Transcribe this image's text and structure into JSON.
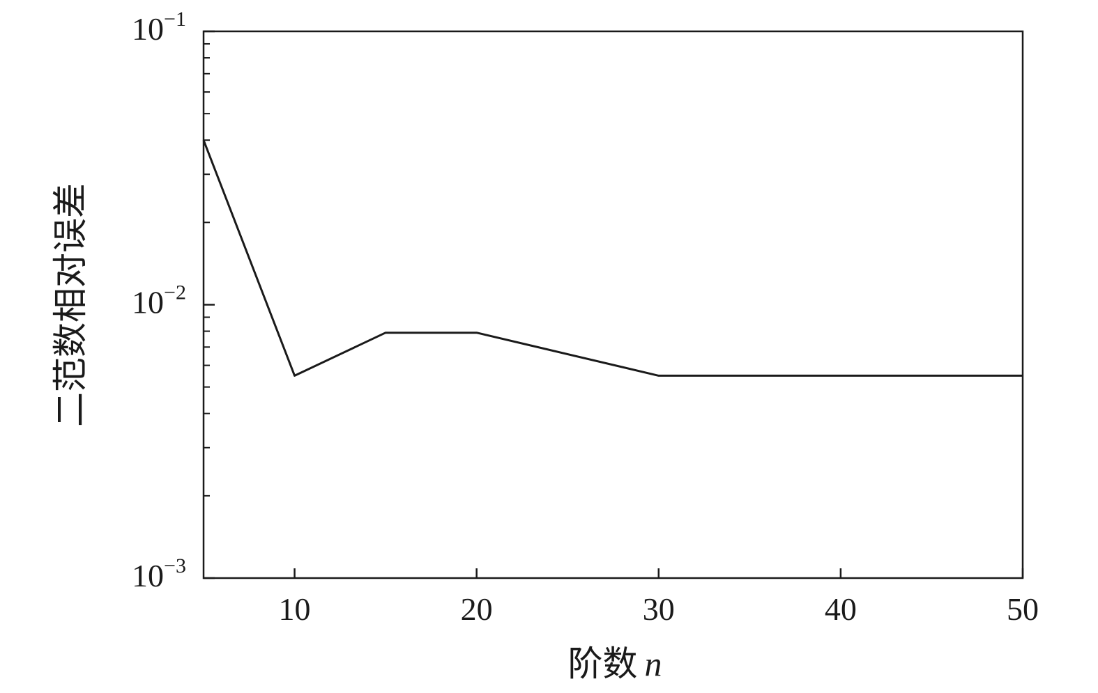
{
  "chart_data": {
    "type": "line",
    "xlabel": "阶数",
    "xlabel_var": "n",
    "ylabel": "二范数相对误差",
    "xlim": [
      5,
      50
    ],
    "ylim": [
      0.001,
      0.1
    ],
    "yscale": "log",
    "grid": false,
    "x_ticks": [
      10,
      20,
      30,
      40,
      50
    ],
    "y_ticks": [
      {
        "value": 0.001,
        "base": "10",
        "exp": "−3"
      },
      {
        "value": 0.01,
        "base": "10",
        "exp": "−2"
      },
      {
        "value": 0.1,
        "base": "10",
        "exp": "−1"
      }
    ],
    "series": [
      {
        "color": "#1a1a1a",
        "x": [
          5,
          10,
          15,
          20,
          30,
          50
        ],
        "y": [
          0.04,
          0.0055,
          0.0079,
          0.0079,
          0.0055,
          0.0055
        ]
      }
    ]
  }
}
